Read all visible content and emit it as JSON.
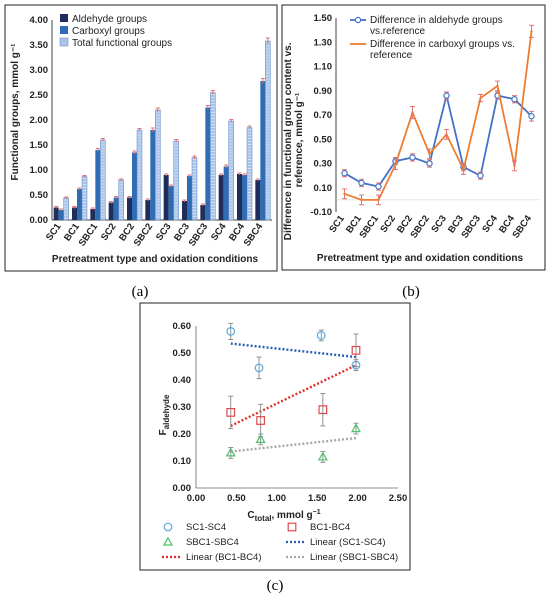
{
  "colors": {
    "aldehyde": "#1f2d5a",
    "carboxyl": "#2e6db3",
    "total": "#a9c4e8",
    "diff_aldehyde": "#4472c4",
    "diff_carboxyl": "#ed7d31",
    "error": "#e57373",
    "sc": "#5aa9dd",
    "bc": "#e0474c",
    "sbc": "#4cc06a",
    "lin_sc": "#2a5db0",
    "lin_bc": "#e0302c",
    "lin_sbc": "#a6a6a6"
  },
  "panel_labels": {
    "a": "(a)",
    "b": "(b)",
    "c": "(c)"
  },
  "chart_data": [
    {
      "id": "a",
      "type": "bar",
      "categories": [
        "SC1",
        "BC1",
        "SBC1",
        "SC2",
        "BC2",
        "SBC2",
        "SC3",
        "BC3",
        "SBC3",
        "SC4",
        "BC4",
        "SBC4"
      ],
      "series": [
        {
          "name": "Aldehyde groups",
          "values": [
            0.25,
            0.25,
            0.22,
            0.35,
            0.45,
            0.4,
            0.9,
            0.38,
            0.3,
            0.9,
            0.92,
            0.8
          ],
          "errors": [
            0.02,
            0.02,
            0.02,
            0.02,
            0.02,
            0.02,
            0.02,
            0.02,
            0.02,
            0.02,
            0.02,
            0.02
          ]
        },
        {
          "name": "Carboxyl groups",
          "values": [
            0.2,
            0.62,
            1.4,
            0.45,
            1.35,
            1.8,
            0.68,
            0.88,
            2.25,
            1.07,
            0.9,
            2.78
          ],
          "errors": [
            0.02,
            0.02,
            0.03,
            0.02,
            0.03,
            0.04,
            0.02,
            0.02,
            0.04,
            0.03,
            0.02,
            0.05
          ]
        },
        {
          "name": "Total functional groups",
          "values": [
            0.44,
            0.87,
            1.6,
            0.8,
            1.8,
            2.2,
            1.58,
            1.25,
            2.55,
            1.98,
            1.85,
            3.58
          ],
          "errors": [
            0.02,
            0.02,
            0.03,
            0.02,
            0.03,
            0.04,
            0.03,
            0.03,
            0.04,
            0.03,
            0.03,
            0.06
          ]
        }
      ],
      "xlabel": "Pretreatment type and oxidation conditions",
      "ylabel": "Functional groups, mmol g⁻¹",
      "ylim": [
        0,
        4
      ],
      "yticks": [
        "0.00",
        "0.50",
        "1.00",
        "1.50",
        "2.00",
        "2.50",
        "3.00",
        "3.50",
        "4.00"
      ],
      "legend": "top-left",
      "grid": false
    },
    {
      "id": "b",
      "type": "line",
      "categories": [
        "SC1",
        "BC1",
        "SBC1",
        "SC2",
        "BC2",
        "SBC2",
        "SC3",
        "BC3",
        "SBC3",
        "SC4",
        "BC4",
        "SBC4"
      ],
      "series": [
        {
          "name": "Difference in aldehyde groups vs.reference",
          "values": [
            0.22,
            0.14,
            0.11,
            0.32,
            0.35,
            0.3,
            0.86,
            0.27,
            0.2,
            0.86,
            0.83,
            0.69
          ],
          "errors": [
            0.03,
            0.03,
            0.03,
            0.03,
            0.03,
            0.03,
            0.03,
            0.03,
            0.03,
            0.03,
            0.03,
            0.04
          ]
        },
        {
          "name": "Difference in carboxyl groups vs. reference",
          "values": [
            0.05,
            0.0,
            0.0,
            0.29,
            0.72,
            0.38,
            0.54,
            0.25,
            0.84,
            0.94,
            0.28,
            1.39
          ],
          "errors": [
            0.04,
            0.04,
            0.04,
            0.04,
            0.05,
            0.04,
            0.04,
            0.04,
            0.03,
            0.04,
            0.04,
            0.05
          ]
        }
      ],
      "xlabel": "Pretreatment type and oxidation conditions",
      "ylabel": "Difference in functional group content vs. reference, mmol g⁻¹",
      "ylim": [
        -0.1,
        1.5
      ],
      "yticks": [
        "-0.10",
        "0.10",
        "0.30",
        "0.50",
        "0.70",
        "0.90",
        "1.10",
        "1.30",
        "1.50"
      ],
      "legend": "top",
      "grid": false
    },
    {
      "id": "c",
      "type": "scatter",
      "series": [
        {
          "name": "SC1-SC4",
          "x": [
            0.43,
            0.78,
            1.55,
            1.98
          ],
          "y": [
            0.58,
            0.445,
            0.565,
            0.455
          ],
          "errors": [
            0.03,
            0.04,
            0.02,
            0.02
          ]
        },
        {
          "name": "BC1-BC4",
          "x": [
            0.43,
            0.8,
            1.57,
            1.98
          ],
          "y": [
            0.28,
            0.25,
            0.29,
            0.51
          ],
          "errors": [
            0.06,
            0.06,
            0.06,
            0.06
          ]
        },
        {
          "name": "SBC1-SBC4",
          "x": [
            0.43,
            0.8,
            1.57,
            1.98
          ],
          "y": [
            0.13,
            0.18,
            0.115,
            0.22
          ],
          "errors": [
            0.02,
            0.02,
            0.02,
            0.02
          ]
        }
      ],
      "trendlines": [
        {
          "name": "Linear (SC1-SC4)",
          "x": [
            0.43,
            1.98
          ],
          "y": [
            0.535,
            0.485
          ]
        },
        {
          "name": "Linear (BC1-BC4)",
          "x": [
            0.43,
            1.98
          ],
          "y": [
            0.23,
            0.455
          ]
        },
        {
          "name": "Linear (SBC1-SBC4)",
          "x": [
            0.43,
            1.98
          ],
          "y": [
            0.135,
            0.185
          ]
        }
      ],
      "xlabel": "Ctotal, mmol g⁻¹",
      "ylabel": "Faldehyde",
      "xlim": [
        0,
        2.5
      ],
      "ylim": [
        0,
        0.6
      ],
      "xticks": [
        "0.00",
        "0.50",
        "1.00",
        "1.50",
        "2.00",
        "2.50"
      ],
      "yticks": [
        "0.00",
        "0.10",
        "0.20",
        "0.30",
        "0.40",
        "0.50",
        "0.60"
      ],
      "legend": "bottom",
      "grid": false
    }
  ]
}
